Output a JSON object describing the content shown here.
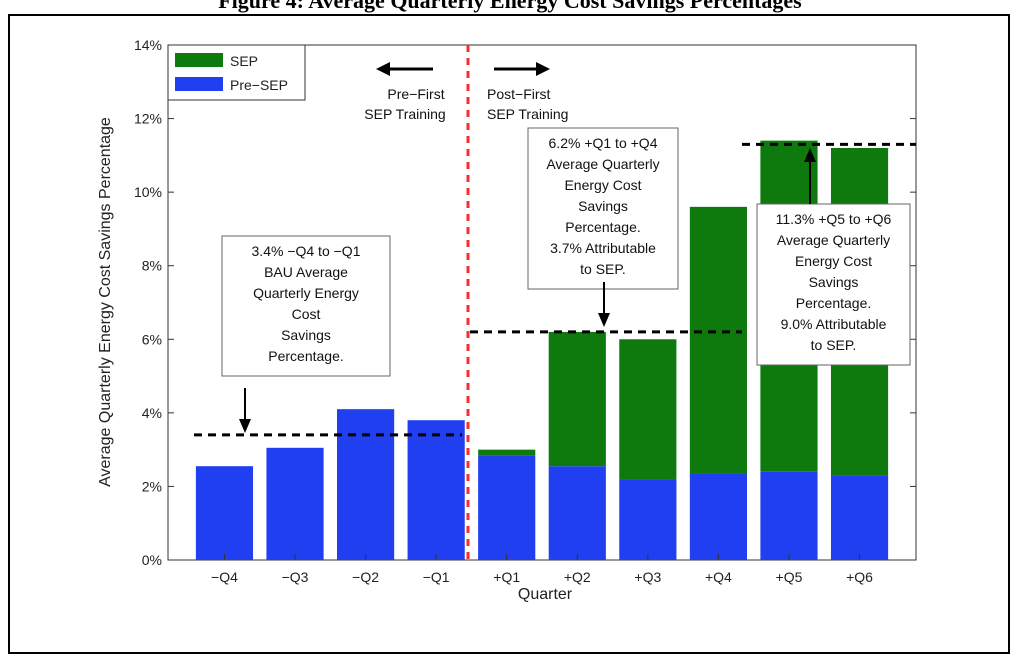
{
  "figure_title": "Figure 4: Average Quarterly Energy Cost Savings Percentages",
  "chart_data": {
    "type": "bar",
    "stacked": true,
    "categories": [
      "−Q4",
      "−Q3",
      "−Q2",
      "−Q1",
      "+Q1",
      "+Q2",
      "+Q3",
      "+Q4",
      "+Q5",
      "+Q6"
    ],
    "series": [
      {
        "name": "Pre−SEP",
        "color": "#1f3ff0",
        "values": [
          2.55,
          3.05,
          4.1,
          3.8,
          2.85,
          2.55,
          2.2,
          2.35,
          2.4,
          2.3
        ]
      },
      {
        "name": "SEP",
        "color": "#0e7a0e",
        "values": [
          0,
          0,
          0,
          0,
          0.15,
          3.65,
          3.8,
          7.25,
          9.0,
          8.9
        ]
      }
    ],
    "xlabel": "Quarter",
    "ylabel": "Average Quarterly Energy Cost Savings Percentage",
    "ylim": [
      0,
      14
    ],
    "yticks": [
      "0%",
      "2%",
      "4%",
      "6%",
      "8%",
      "10%",
      "12%",
      "14%"
    ],
    "legend_position": "top-left",
    "reference_lines": [
      {
        "value": 3.4,
        "from": "−Q4",
        "to": "−Q1"
      },
      {
        "value": 6.2,
        "from": "+Q1",
        "to": "+Q4"
      },
      {
        "value": 11.3,
        "from": "+Q5",
        "to": "+Q6"
      }
    ],
    "annotations": {
      "pre_arrow_label": [
        "Pre−First",
        "SEP Training"
      ],
      "post_arrow_label": [
        "Post−First",
        "SEP Training"
      ],
      "box1": [
        "3.4% −Q4 to −Q1",
        "BAU Average",
        "Quarterly Energy",
        "Cost",
        "Savings",
        "Percentage."
      ],
      "box2": [
        "6.2% +Q1 to +Q4",
        "Average Quarterly",
        "Energy Cost",
        "Savings",
        "Percentage.",
        "3.7% Attributable",
        "to SEP."
      ],
      "box3": [
        "11.3% +Q5 to +Q6",
        "Average Quarterly",
        "Energy Cost",
        "Savings",
        "Percentage.",
        "9.0% Attributable",
        "to SEP."
      ]
    }
  }
}
